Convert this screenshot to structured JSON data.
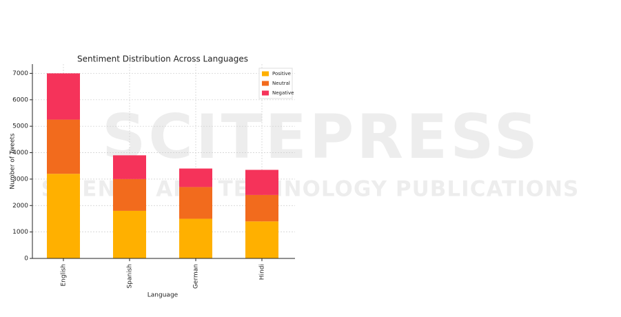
{
  "chart_data": {
    "type": "stacked-bar",
    "title": "Sentiment Distribution Across Languages",
    "x_label": "Language",
    "y_label": "Number of Tweets",
    "categories": [
      "English",
      "Spanish",
      "German",
      "Hindi"
    ],
    "series": [
      {
        "name": "Positive",
        "color": "#ffb000",
        "values": [
          3200,
          1800,
          1500,
          1400
        ]
      },
      {
        "name": "Neutral",
        "color": "#f26b1d",
        "values": [
          2050,
          1200,
          1200,
          1000
        ]
      },
      {
        "name": "Negative",
        "color": "#f5335a",
        "values": [
          1750,
          900,
          700,
          950
        ]
      }
    ],
    "ylim": [
      0,
      7350
    ],
    "yticks": [
      0,
      1000,
      2000,
      3000,
      4000,
      5000,
      6000,
      7000
    ],
    "grid": true,
    "legend": "upper-right"
  },
  "watermark": {
    "title": "SCITEPRESS",
    "subtitle": "SCIENCE AND TECHNOLOGY PUBLICATIONS"
  }
}
